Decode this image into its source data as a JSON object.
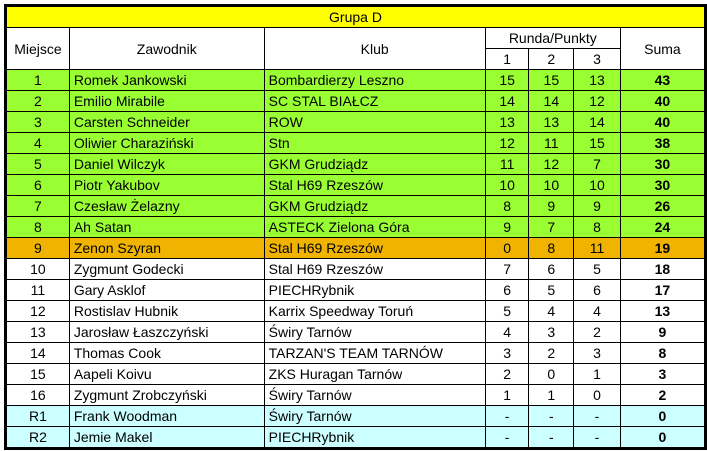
{
  "title": "Grupa D",
  "headers": {
    "place": "Miejsce",
    "rider": "Zawodnik",
    "club": "Klub",
    "rounds": "Runda/Punkty",
    "r1": "1",
    "r2": "2",
    "r3": "3",
    "sum": "Suma"
  },
  "colors": {
    "title": "#ffff00",
    "qualified": "#99ff33",
    "highlight": "#f0b400",
    "normal": "#ffffff",
    "reserve": "#ccffff"
  },
  "rows": [
    {
      "place": "1",
      "rider": "Romek Jankowski",
      "club": "Bombardierzy Leszno",
      "r1": "15",
      "r2": "15",
      "r3": "13",
      "sum": "43",
      "status": "qualified"
    },
    {
      "place": "2",
      "rider": "Emilio Mirabile",
      "club": "SC STAL BIAŁCZ",
      "r1": "14",
      "r2": "14",
      "r3": "12",
      "sum": "40",
      "status": "qualified"
    },
    {
      "place": "3",
      "rider": "Carsten Schneider",
      "club": "ROW",
      "r1": "13",
      "r2": "13",
      "r3": "14",
      "sum": "40",
      "status": "qualified"
    },
    {
      "place": "4",
      "rider": "Oliwier Charaziński",
      "club": "Stn",
      "r1": "12",
      "r2": "11",
      "r3": "15",
      "sum": "38",
      "status": "qualified"
    },
    {
      "place": "5",
      "rider": "Daniel Wilczyk",
      "club": "GKM Grudziądz",
      "r1": "11",
      "r2": "12",
      "r3": "7",
      "sum": "30",
      "status": "qualified"
    },
    {
      "place": "6",
      "rider": "Piotr Yakubov",
      "club": "Stal H69 Rzeszów",
      "r1": "10",
      "r2": "10",
      "r3": "10",
      "sum": "30",
      "status": "qualified"
    },
    {
      "place": "7",
      "rider": "Czesław Żelazny",
      "club": "GKM Grudziądz",
      "r1": "8",
      "r2": "9",
      "r3": "9",
      "sum": "26",
      "status": "qualified"
    },
    {
      "place": "8",
      "rider": "Ah Satan",
      "club": "ASTECK Zielona Góra",
      "r1": "9",
      "r2": "7",
      "r3": "8",
      "sum": "24",
      "status": "qualified"
    },
    {
      "place": "9",
      "rider": "Zenon Szyran",
      "club": "Stal H69 Rzeszów",
      "r1": "0",
      "r2": "8",
      "r3": "11",
      "sum": "19",
      "status": "highlight"
    },
    {
      "place": "10",
      "rider": "Zygmunt Godecki",
      "club": "Stal H69 Rzeszów",
      "r1": "7",
      "r2": "6",
      "r3": "5",
      "sum": "18",
      "status": "normal"
    },
    {
      "place": "11",
      "rider": "Gary Asklof",
      "club": "PIECHRybnik",
      "r1": "6",
      "r2": "5",
      "r3": "6",
      "sum": "17",
      "status": "normal"
    },
    {
      "place": "12",
      "rider": "Rostislav Hubnik",
      "club": "Karrix Speedway Toruń",
      "r1": "5",
      "r2": "4",
      "r3": "4",
      "sum": "13",
      "status": "normal"
    },
    {
      "place": "13",
      "rider": "Jarosław Łaszczyński",
      "club": "Świry Tarnów",
      "r1": "4",
      "r2": "3",
      "r3": "2",
      "sum": "9",
      "status": "normal"
    },
    {
      "place": "14",
      "rider": "Thomas Cook",
      "club": "TARZAN'S TEAM TARNÓW",
      "r1": "3",
      "r2": "2",
      "r3": "3",
      "sum": "8",
      "status": "normal"
    },
    {
      "place": "15",
      "rider": "Aapeli Koivu",
      "club": "ZKS Huragan Tarnów",
      "r1": "2",
      "r2": "0",
      "r3": "1",
      "sum": "3",
      "status": "normal"
    },
    {
      "place": "16",
      "rider": "Zygmunt Zrobczyński",
      "club": "Świry Tarnów",
      "r1": "1",
      "r2": "1",
      "r3": "0",
      "sum": "2",
      "status": "normal"
    },
    {
      "place": "R1",
      "rider": "Frank Woodman",
      "club": "Świry Tarnów",
      "r1": "-",
      "r2": "-",
      "r3": "-",
      "sum": "0",
      "status": "reserve"
    },
    {
      "place": "R2",
      "rider": "Jemie Makel",
      "club": "PIECHRybnik",
      "r1": "-",
      "r2": "-",
      "r3": "-",
      "sum": "0",
      "status": "reserve"
    }
  ]
}
